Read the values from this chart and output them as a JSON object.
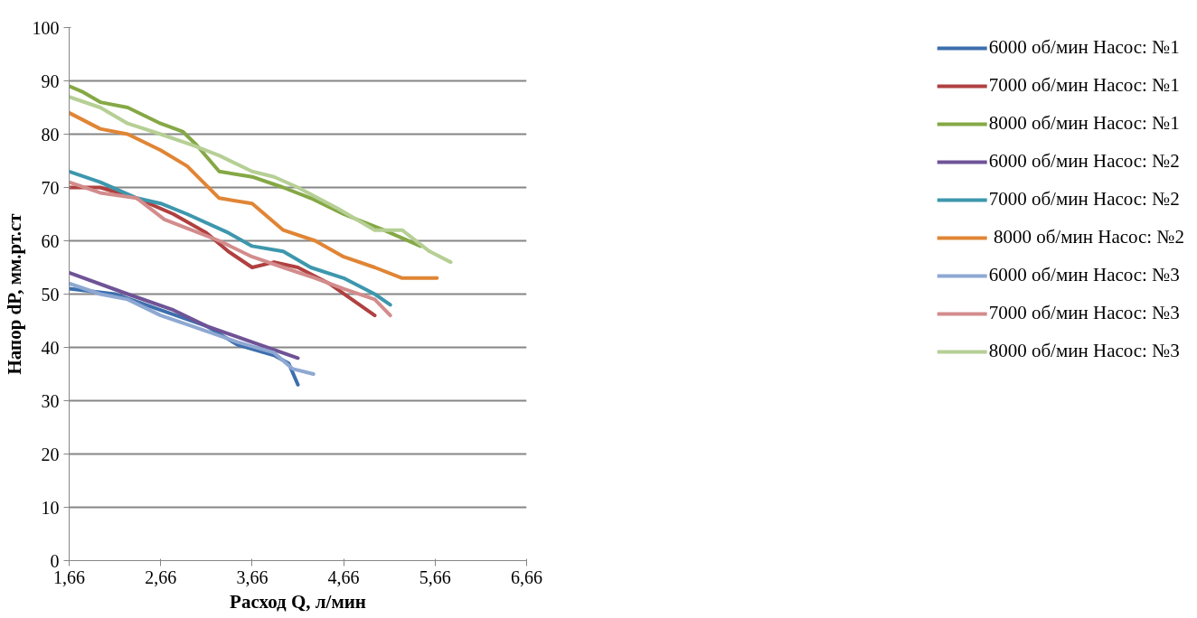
{
  "chart_data": {
    "type": "line",
    "xlabel": "Расход Q, л/мин",
    "ylabel": "Напор dP, мм.рт.ст",
    "xlim": [
      1.66,
      6.66
    ],
    "xticks": [
      {
        "value": 1.66,
        "label": "1,66"
      },
      {
        "value": 2.66,
        "label": "2,66"
      },
      {
        "value": 3.66,
        "label": "3,66"
      },
      {
        "value": 4.66,
        "label": "4,66"
      },
      {
        "value": 5.66,
        "label": "5,66"
      },
      {
        "value": 6.66,
        "label": "6,66"
      }
    ],
    "ylim": [
      0,
      100
    ],
    "yticks": [
      0,
      10,
      20,
      30,
      40,
      50,
      60,
      70,
      80,
      90,
      100
    ],
    "grid": "y",
    "legend": "right",
    "line_style": "solid",
    "marker": "none",
    "series": [
      {
        "name": "6000 об/мин Насос: №1",
        "color": "#3d6fad",
        "x": [
          1.66,
          2.16,
          2.66,
          3.16,
          3.5,
          3.9,
          4.06,
          4.16
        ],
        "values": [
          51,
          50,
          47,
          44,
          40.5,
          38.5,
          37,
          33
        ]
      },
      {
        "name": "7000 об/мин Насос: №1",
        "color": "#b04040",
        "x": [
          1.66,
          2.0,
          2.4,
          2.8,
          3.16,
          3.4,
          3.66,
          3.9,
          4.16,
          4.5,
          5.0
        ],
        "values": [
          70,
          70,
          68,
          65,
          61.5,
          58,
          55,
          56,
          55,
          52,
          46
        ]
      },
      {
        "name": "8000 об/мин Насос: №1",
        "color": "#85a845",
        "x": [
          1.66,
          1.8,
          2.0,
          2.3,
          2.66,
          2.9,
          3.05,
          3.3,
          3.66,
          4.0,
          4.3,
          4.66,
          5.1,
          5.5
        ],
        "values": [
          89,
          88,
          86,
          85,
          82,
          80.5,
          78,
          73,
          72,
          70,
          68,
          65,
          62,
          59
        ]
      },
      {
        "name": "6000 об/мин Насос: №2",
        "color": "#6f5396",
        "x": [
          1.66,
          2.3,
          2.8,
          3.16,
          3.66,
          4.16
        ],
        "values": [
          54,
          50,
          47,
          44,
          41,
          38
        ]
      },
      {
        "name": "7000 об/мин Насос: №2",
        "color": "#3d97ad",
        "x": [
          1.66,
          2.0,
          2.4,
          2.66,
          2.95,
          3.4,
          3.66,
          4.0,
          4.3,
          4.66,
          5.0,
          5.17
        ],
        "values": [
          73,
          71,
          68,
          67,
          65,
          61.5,
          59,
          58,
          55,
          53,
          50,
          48
        ]
      },
      {
        "name": " 8000 об/мин Насос: №2",
        "color": "#e08535",
        "x": [
          1.66,
          2.0,
          2.3,
          2.66,
          2.95,
          3.3,
          3.66,
          4.0,
          4.35,
          4.66,
          5.0,
          5.3,
          5.68
        ],
        "values": [
          84,
          81,
          80,
          77,
          74,
          68,
          67,
          62,
          60,
          57,
          55,
          53,
          53
        ]
      },
      {
        "name": "6000 об/мин Насос: №3",
        "color": "#8ea8d2",
        "x": [
          1.66,
          2.0,
          2.3,
          2.66,
          3.0,
          3.5,
          3.9,
          4.1,
          4.33
        ],
        "values": [
          52,
          50,
          49,
          46,
          44,
          41,
          39,
          36,
          35
        ]
      },
      {
        "name": "7000 об/мин Насос: №3",
        "color": "#d38c8c",
        "x": [
          1.66,
          2.0,
          2.4,
          2.7,
          3.0,
          3.3,
          3.66,
          4.0,
          4.35,
          4.66,
          5.0,
          5.17
        ],
        "values": [
          71,
          69,
          68,
          64,
          62,
          60,
          57,
          55,
          53,
          51,
          49,
          46
        ]
      },
      {
        "name": "8000 об/мин Насос: №3",
        "color": "#b6cf95",
        "x": [
          1.66,
          2.0,
          2.3,
          2.66,
          3.0,
          3.3,
          3.66,
          3.9,
          4.16,
          4.6,
          5.0,
          5.3,
          5.6,
          5.83
        ],
        "values": [
          87,
          85,
          82,
          80,
          78,
          76,
          73,
          72,
          70,
          66,
          62,
          62,
          58,
          56
        ]
      }
    ]
  }
}
